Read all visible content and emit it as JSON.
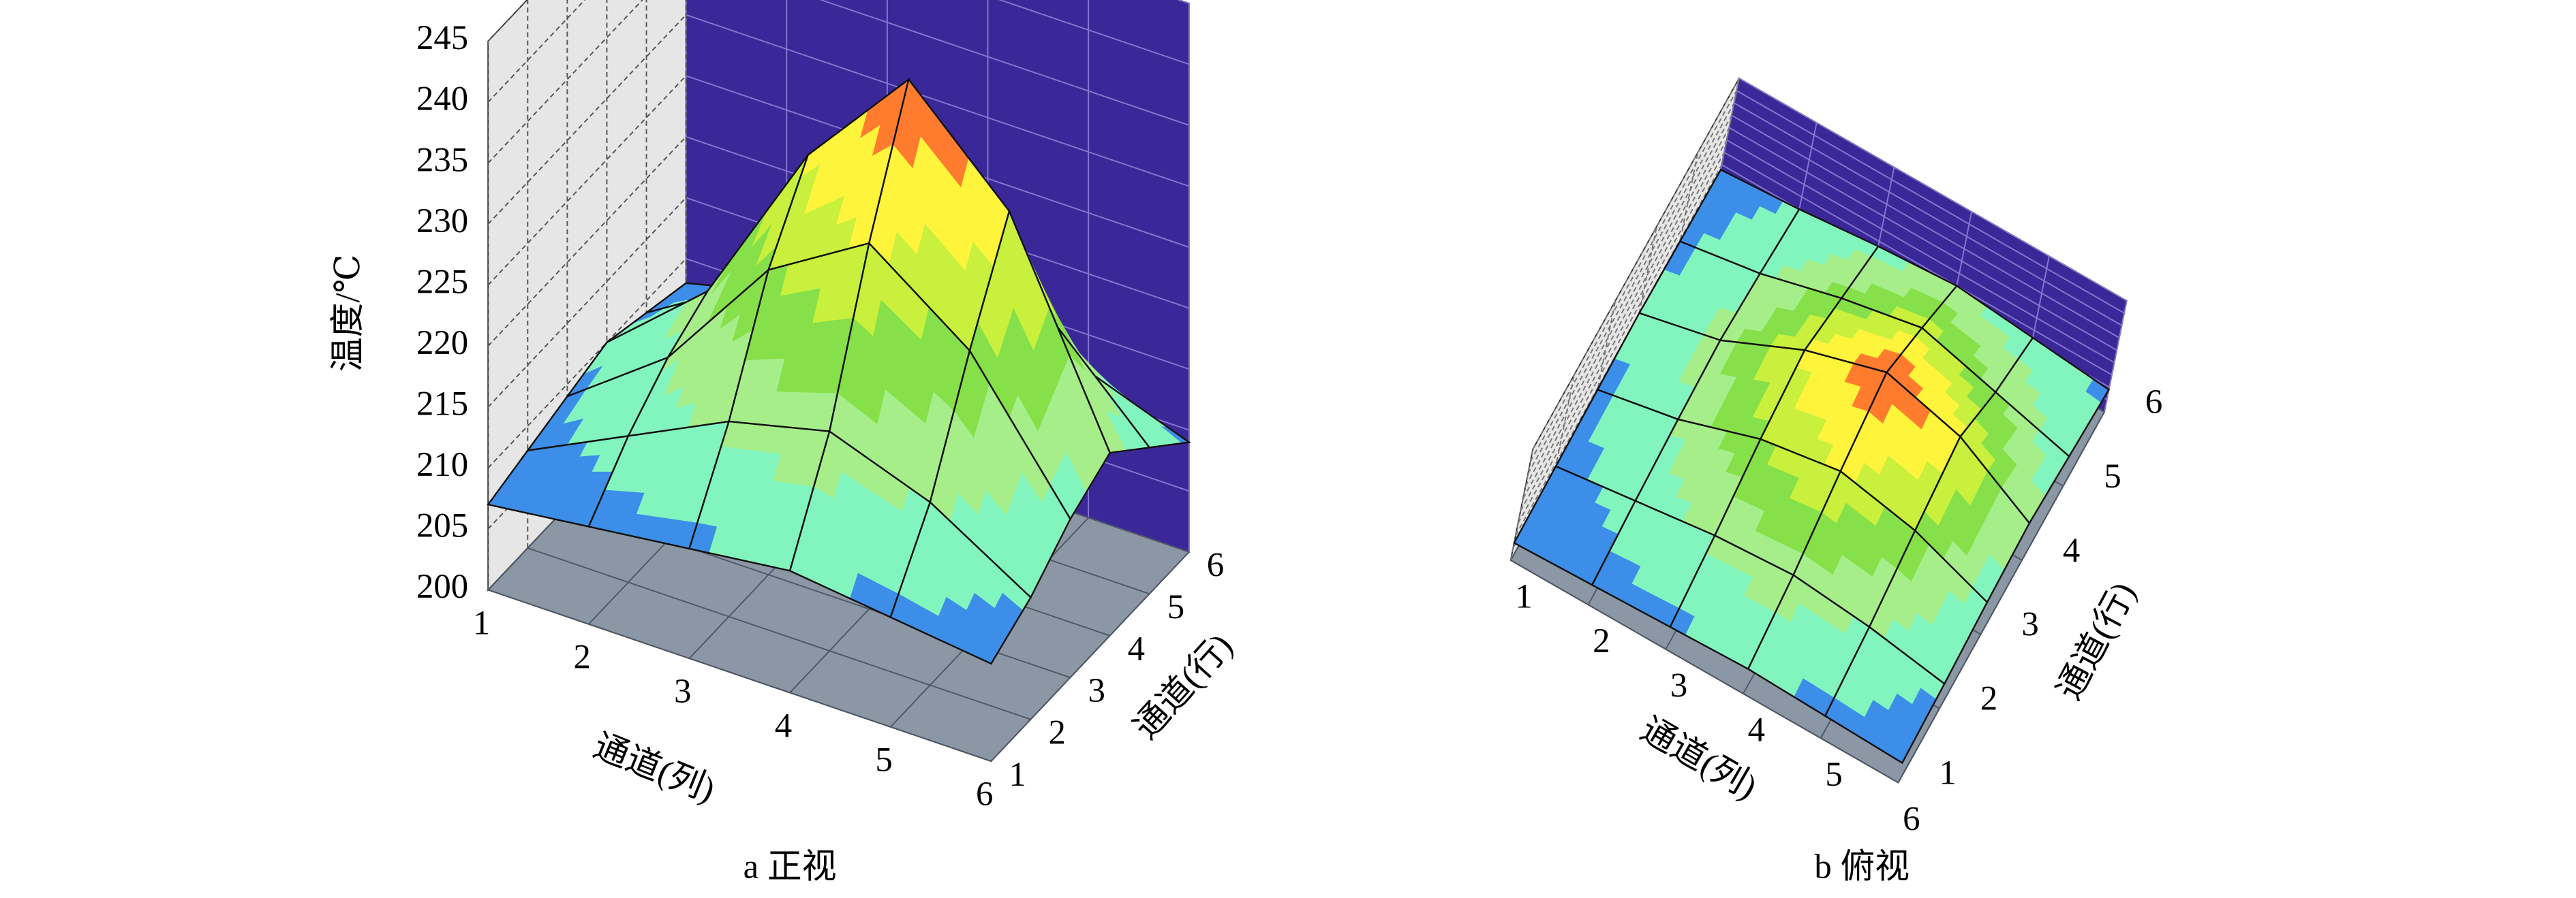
{
  "chart_data": {
    "type": "surface3d",
    "x_label": "通道(列)",
    "y_label": "通道(行)",
    "z_label": "温度/℃",
    "x": [
      1,
      2,
      3,
      4,
      5,
      6
    ],
    "y": [
      1,
      2,
      3,
      4,
      5,
      6
    ],
    "z": [
      [
        207,
        208,
        209,
        210,
        209,
        208
      ],
      [
        208,
        212,
        216,
        218,
        215,
        210
      ],
      [
        209,
        215,
        225,
        230,
        224,
        213
      ],
      [
        210,
        217,
        231,
        240,
        232,
        215
      ],
      [
        209,
        214,
        222,
        228,
        220,
        212
      ],
      [
        208,
        210,
        213,
        215,
        212,
        209
      ]
    ],
    "xlim": [
      1,
      6
    ],
    "ylim": [
      1,
      6
    ],
    "zlim": [
      200,
      245
    ],
    "xticks": [
      1,
      2,
      3,
      4,
      5,
      6
    ],
    "yticks": [
      1,
      2,
      3,
      4,
      5,
      6
    ],
    "zticks": [
      200,
      205,
      210,
      215,
      220,
      225,
      230,
      235,
      240,
      245
    ],
    "levels": [
      210,
      215,
      220,
      225,
      230,
      235,
      240
    ],
    "colors": [
      "#3d8ee8",
      "#82f5be",
      "#a6ee8a",
      "#86e04a",
      "#c8f03c",
      "#fff43c",
      "#ff7c2e",
      "#ff2a18"
    ],
    "views": [
      {
        "caption": "a 正视",
        "z_axis": true
      },
      {
        "caption": "b 俯视",
        "z_axis": false
      }
    ]
  }
}
